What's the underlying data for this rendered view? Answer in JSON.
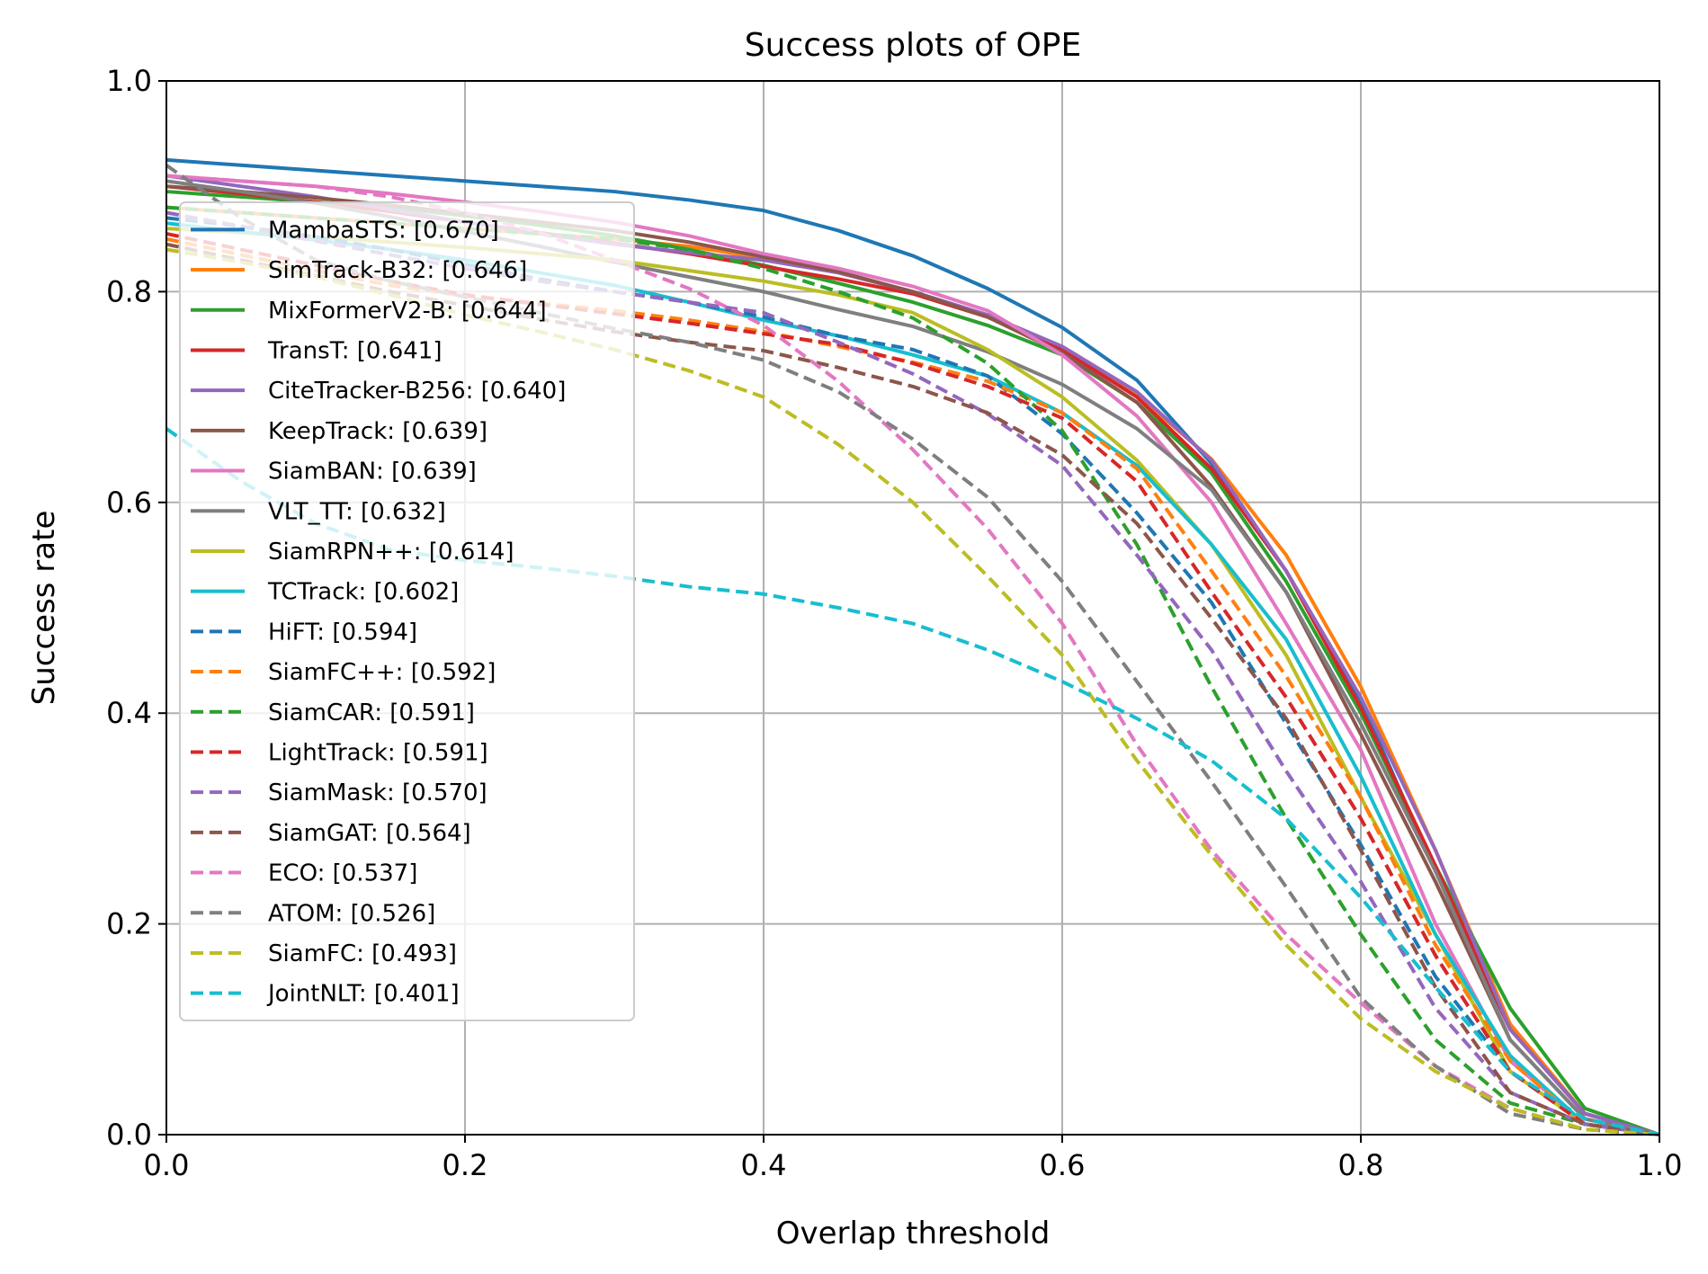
{
  "chart_data": {
    "type": "line",
    "title": "Success plots of OPE",
    "xlabel": "Overlap threshold",
    "ylabel": "Success rate",
    "xlim": [
      0,
      1
    ],
    "ylim": [
      0,
      1
    ],
    "xticks": [
      "0.0",
      "0.2",
      "0.4",
      "0.6",
      "0.8",
      "1.0"
    ],
    "yticks": [
      "0.0",
      "0.2",
      "0.4",
      "0.6",
      "0.8",
      "1.0"
    ],
    "grid": true,
    "legend_position": "upper-left",
    "x": [
      0,
      0.05,
      0.1,
      0.15,
      0.2,
      0.25,
      0.3,
      0.35,
      0.4,
      0.45,
      0.5,
      0.55,
      0.6,
      0.65,
      0.7,
      0.75,
      0.8,
      0.85,
      0.9,
      0.95,
      1.0
    ],
    "series": [
      {
        "name": "MambaSTS: [0.670]",
        "color": "#1f77b4",
        "dash": "solid",
        "values": [
          0.925,
          0.92,
          0.915,
          0.91,
          0.905,
          0.9,
          0.895,
          0.887,
          0.877,
          0.858,
          0.834,
          0.803,
          0.766,
          0.716,
          0.637,
          0.535,
          0.412,
          0.25,
          0.1,
          0.02,
          0.0
        ]
      },
      {
        "name": "SimTrack-B32: [0.646]",
        "color": "#ff7f0e",
        "dash": "solid",
        "values": [
          0.88,
          0.875,
          0.87,
          0.865,
          0.86,
          0.855,
          0.85,
          0.843,
          0.832,
          0.818,
          0.8,
          0.776,
          0.744,
          0.702,
          0.641,
          0.55,
          0.425,
          0.27,
          0.105,
          0.02,
          0.0
        ]
      },
      {
        "name": "MixFormerV2-B: [0.644]",
        "color": "#2ca02c",
        "dash": "solid",
        "values": [
          0.895,
          0.89,
          0.885,
          0.88,
          0.872,
          0.863,
          0.853,
          0.84,
          0.825,
          0.808,
          0.79,
          0.768,
          0.74,
          0.695,
          0.628,
          0.525,
          0.4,
          0.255,
          0.12,
          0.025,
          0.0
        ]
      },
      {
        "name": "TransT: [0.641]",
        "color": "#d62728",
        "dash": "solid",
        "values": [
          0.9,
          0.893,
          0.885,
          0.876,
          0.866,
          0.856,
          0.846,
          0.836,
          0.824,
          0.812,
          0.798,
          0.776,
          0.745,
          0.7,
          0.632,
          0.535,
          0.405,
          0.255,
          0.1,
          0.02,
          0.0
        ]
      },
      {
        "name": "CiteTracker-B256: [0.640]",
        "color": "#9467bd",
        "dash": "solid",
        "values": [
          0.91,
          0.9,
          0.89,
          0.878,
          0.866,
          0.855,
          0.845,
          0.837,
          0.83,
          0.818,
          0.8,
          0.778,
          0.748,
          0.705,
          0.64,
          0.535,
          0.415,
          0.27,
          0.1,
          0.02,
          0.0
        ]
      },
      {
        "name": "KeepTrack: [0.639]",
        "color": "#8c564b",
        "dash": "solid",
        "values": [
          0.9,
          0.895,
          0.889,
          0.882,
          0.874,
          0.866,
          0.858,
          0.847,
          0.833,
          0.819,
          0.8,
          0.776,
          0.742,
          0.695,
          0.615,
          0.515,
          0.38,
          0.24,
          0.09,
          0.015,
          0.0
        ]
      },
      {
        "name": "SiamBAN: [0.639]",
        "color": "#e377c2",
        "dash": "solid",
        "values": [
          0.91,
          0.905,
          0.9,
          0.893,
          0.885,
          0.876,
          0.866,
          0.853,
          0.836,
          0.822,
          0.805,
          0.782,
          0.74,
          0.682,
          0.6,
          0.485,
          0.365,
          0.2,
          0.07,
          0.01,
          0.0
        ]
      },
      {
        "name": "VLT_TT: [0.632]",
        "color": "#7f7f7f",
        "dash": "solid",
        "values": [
          0.905,
          0.895,
          0.884,
          0.871,
          0.857,
          0.843,
          0.828,
          0.814,
          0.8,
          0.783,
          0.767,
          0.743,
          0.712,
          0.67,
          0.612,
          0.515,
          0.39,
          0.25,
          0.09,
          0.015,
          0.0
        ]
      },
      {
        "name": "SiamRPN++: [0.614]",
        "color": "#bcbd22",
        "dash": "solid",
        "values": [
          0.86,
          0.856,
          0.852,
          0.847,
          0.842,
          0.836,
          0.83,
          0.82,
          0.81,
          0.797,
          0.78,
          0.745,
          0.7,
          0.64,
          0.56,
          0.455,
          0.32,
          0.19,
          0.06,
          0.01,
          0.0
        ]
      },
      {
        "name": "TCTrack: [0.602]",
        "color": "#17becf",
        "dash": "solid",
        "values": [
          0.865,
          0.857,
          0.849,
          0.84,
          0.83,
          0.818,
          0.806,
          0.79,
          0.773,
          0.758,
          0.74,
          0.72,
          0.685,
          0.635,
          0.56,
          0.47,
          0.34,
          0.19,
          0.075,
          0.01,
          0.0
        ]
      },
      {
        "name": "HiFT: [0.594]",
        "color": "#1f77b4",
        "dash": "dashed",
        "values": [
          0.87,
          0.862,
          0.852,
          0.84,
          0.826,
          0.812,
          0.8,
          0.79,
          0.776,
          0.758,
          0.745,
          0.72,
          0.665,
          0.59,
          0.505,
          0.39,
          0.275,
          0.15,
          0.06,
          0.01,
          0.0
        ]
      },
      {
        "name": "SiamFC++: [0.592]",
        "color": "#ff7f0e",
        "dash": "dashed",
        "values": [
          0.85,
          0.835,
          0.82,
          0.806,
          0.796,
          0.789,
          0.782,
          0.773,
          0.762,
          0.748,
          0.733,
          0.715,
          0.685,
          0.632,
          0.535,
          0.435,
          0.32,
          0.18,
          0.07,
          0.01,
          0.0
        ]
      },
      {
        "name": "SiamCAR: [0.591]",
        "color": "#2ca02c",
        "dash": "dashed",
        "values": [
          0.88,
          0.875,
          0.87,
          0.865,
          0.86,
          0.855,
          0.85,
          0.84,
          0.822,
          0.8,
          0.775,
          0.732,
          0.668,
          0.56,
          0.425,
          0.3,
          0.19,
          0.09,
          0.03,
          0.01,
          0.0
        ]
      },
      {
        "name": "LightTrack: [0.591]",
        "color": "#d62728",
        "dash": "dashed",
        "values": [
          0.855,
          0.84,
          0.825,
          0.81,
          0.797,
          0.788,
          0.779,
          0.77,
          0.76,
          0.75,
          0.732,
          0.71,
          0.68,
          0.62,
          0.515,
          0.415,
          0.3,
          0.17,
          0.06,
          0.01,
          0.0
        ]
      },
      {
        "name": "SiamMask: [0.570]",
        "color": "#9467bd",
        "dash": "dashed",
        "values": [
          0.875,
          0.862,
          0.848,
          0.835,
          0.822,
          0.81,
          0.8,
          0.79,
          0.78,
          0.752,
          0.722,
          0.684,
          0.635,
          0.55,
          0.46,
          0.345,
          0.24,
          0.12,
          0.04,
          0.01,
          0.0
        ]
      },
      {
        "name": "SiamGAT: [0.564]",
        "color": "#8c564b",
        "dash": "dashed",
        "values": [
          0.845,
          0.83,
          0.815,
          0.8,
          0.787,
          0.774,
          0.762,
          0.752,
          0.744,
          0.728,
          0.71,
          0.685,
          0.645,
          0.58,
          0.49,
          0.395,
          0.27,
          0.14,
          0.04,
          0.01,
          0.0
        ]
      },
      {
        "name": "ECO: [0.537]",
        "color": "#e377c2",
        "dash": "dashed",
        "values": [
          0.91,
          0.905,
          0.9,
          0.89,
          0.875,
          0.856,
          0.83,
          0.803,
          0.768,
          0.715,
          0.65,
          0.575,
          0.485,
          0.37,
          0.27,
          0.19,
          0.125,
          0.065,
          0.025,
          0.005,
          0.0
        ]
      },
      {
        "name": "ATOM: [0.526]",
        "color": "#7f7f7f",
        "dash": "dashed",
        "values": [
          0.92,
          0.87,
          0.83,
          0.81,
          0.795,
          0.78,
          0.765,
          0.752,
          0.735,
          0.705,
          0.66,
          0.605,
          0.525,
          0.43,
          0.335,
          0.235,
          0.13,
          0.065,
          0.02,
          0.005,
          0.0
        ]
      },
      {
        "name": "SiamFC: [0.493]",
        "color": "#bcbd22",
        "dash": "dashed",
        "values": [
          0.84,
          0.828,
          0.814,
          0.797,
          0.778,
          0.762,
          0.745,
          0.725,
          0.7,
          0.655,
          0.6,
          0.53,
          0.455,
          0.355,
          0.265,
          0.18,
          0.11,
          0.06,
          0.025,
          0.005,
          0.0
        ]
      },
      {
        "name": "JointNLT: [0.401]",
        "color": "#17becf",
        "dash": "dashed",
        "values": [
          0.67,
          0.62,
          0.58,
          0.555,
          0.545,
          0.538,
          0.53,
          0.52,
          0.513,
          0.5,
          0.485,
          0.46,
          0.43,
          0.395,
          0.355,
          0.3,
          0.225,
          0.14,
          0.06,
          0.015,
          0.0
        ]
      }
    ]
  }
}
